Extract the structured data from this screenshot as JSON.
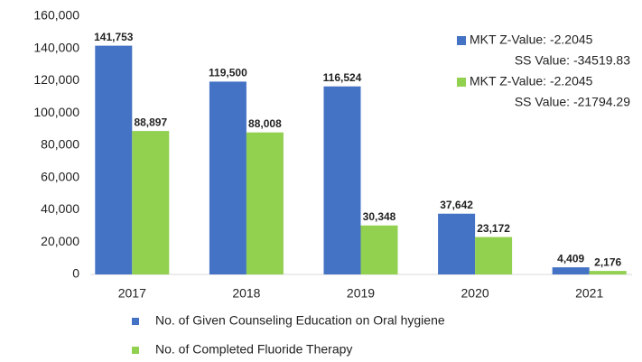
{
  "chart_data": {
    "type": "bar",
    "categories": [
      "2017",
      "2018",
      "2019",
      "2020",
      "2021"
    ],
    "series": [
      {
        "name": "No. of Given Counseling Education on Oral hygiene",
        "color": "#4472c4",
        "values": [
          141753,
          119500,
          116524,
          37642,
          4409
        ],
        "value_labels": [
          "141,753",
          "119,500",
          "116,524",
          "37,642",
          "4,409"
        ]
      },
      {
        "name": "No. of Completed Fluoride Therapy",
        "color": "#92d050",
        "values": [
          88897,
          88008,
          30348,
          23172,
          2176
        ],
        "value_labels": [
          "88,897",
          "88,008",
          "30,348",
          "23,172",
          "2,176"
        ]
      }
    ],
    "ylim": [
      0,
      160000
    ],
    "yticks": [
      0,
      {
        "value": 20000,
        "label": "20,000"
      },
      {
        "value": 40000,
        "label": "40,000"
      },
      {
        "value": 60000,
        "label": "60,000"
      },
      {
        "value": 80000,
        "label": "80,000"
      },
      {
        "value": 100000,
        "label": "100,000"
      },
      {
        "value": 120000,
        "label": "120,000"
      },
      {
        "value": 140000,
        "label": "140,000"
      },
      {
        "value": 160000,
        "label": "160,000"
      }
    ],
    "grid": false,
    "legend": "bottom",
    "annotations": [
      {
        "lines": [
          "MKT Z-Value: -2.2045",
          "SS Value: -34519.83"
        ],
        "color": "#4472c4"
      },
      {
        "lines": [
          "MKT Z-Value: -2.2045",
          "SS Value: -21794.29"
        ],
        "color": "#92d050"
      }
    ]
  }
}
